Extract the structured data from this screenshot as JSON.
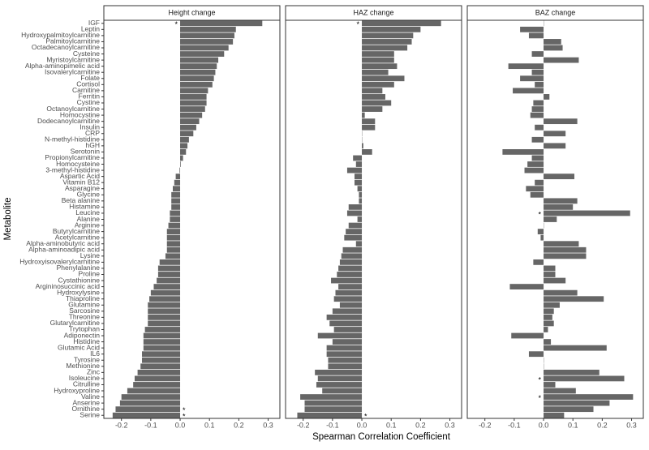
{
  "chart_data": {
    "type": "bar",
    "orientation": "horizontal",
    "x_label": "Spearman Correlation Coefficient",
    "y_label": "Metabolite",
    "color": "#666666",
    "categories": [
      "IGF",
      "Leptin",
      "Hydroxypalmitoylcarnitine",
      "Palmitoylcarnitine",
      "Octadecanoylcarnitine",
      "Cysteine",
      "Myristoylcarnitine",
      "Alpha-aminopimelic acid",
      "Isovalerylcarnitine",
      "Folate",
      "Cortisol",
      "Carnitine",
      "Ferritin",
      "Cystine",
      "Octanoylcarnitine",
      "Homocystine",
      "Dodecanoylcarnitine",
      "Insulin",
      "CRP",
      "N-methyl-histidine",
      "hGH",
      "Serotonin",
      "Propionylcarnitine",
      "Homocysteine",
      "3-methyl-histidine",
      "Aspartic Acid",
      "Vitamin B12",
      "Asparagine",
      "Glycine",
      "Beta alanine",
      "Histamine",
      "Leucine",
      "Alanine",
      "Arginine",
      "Butyrylcarnitine",
      "Acetylcarnitine",
      "Alpha-aminobutyric acid",
      "Alpha-aminoadipic acid",
      "Lysine",
      "Hydroxyisovalerylcarnitine",
      "Phenylalanine",
      "Proline",
      "Cystathionine",
      "Argininosuccinic acid",
      "Hydroxylysine",
      "Thiaproline",
      "Glutamine",
      "Sarcosine",
      "Threonine",
      "Glutarylcarnitine",
      "Trytophan",
      "Adiponectin",
      "Histidine",
      "Glutamic Acid",
      "IL6",
      "Tyrosine",
      "Methionine",
      "Zinc",
      "Isoleucine",
      "Citrulline",
      "Hydroxyproline",
      "Valine",
      "Anserine",
      "Ornithine",
      "Serine"
    ],
    "xlim": [
      -0.26,
      0.34
    ],
    "xticks": [
      -0.2,
      -0.1,
      {
        "value": 0,
        "label": "0.0"
      },
      0.1,
      0.2,
      0.3
    ],
    "series": [
      {
        "name": "Height change",
        "values": [
          0.28,
          0.19,
          0.185,
          0.18,
          0.165,
          0.15,
          0.13,
          0.125,
          0.12,
          0.115,
          0.11,
          0.095,
          0.09,
          0.09,
          0.085,
          0.075,
          0.065,
          0.055,
          0.045,
          0.03,
          0.025,
          0.02,
          0.01,
          0.002,
          -0.002,
          -0.015,
          -0.02,
          -0.025,
          -0.03,
          -0.03,
          -0.03,
          -0.035,
          -0.035,
          -0.04,
          -0.045,
          -0.045,
          -0.045,
          -0.045,
          -0.05,
          -0.07,
          -0.075,
          -0.075,
          -0.08,
          -0.09,
          -0.1,
          -0.105,
          -0.11,
          -0.11,
          -0.11,
          -0.11,
          -0.12,
          -0.125,
          -0.125,
          -0.125,
          -0.13,
          -0.13,
          -0.135,
          -0.145,
          -0.155,
          -0.16,
          -0.18,
          -0.2,
          -0.205,
          -0.22,
          -0.23
        ],
        "annotations": [
          {
            "text": "*",
            "category": "IGF"
          },
          {
            "text": "*",
            "category": "Ornithine"
          },
          {
            "text": "*",
            "category": "Serine"
          }
        ]
      },
      {
        "name": "HAZ change",
        "values": [
          0.27,
          0.2,
          0.175,
          0.17,
          0.155,
          0.11,
          0.11,
          0.12,
          0.09,
          0.145,
          0.11,
          0.07,
          0.08,
          0.1,
          0.07,
          0.01,
          0.045,
          0.045,
          0.001,
          0.001,
          0.005,
          0.035,
          -0.03,
          -0.02,
          -0.05,
          -0.025,
          -0.025,
          -0.015,
          -0.01,
          -0.01,
          -0.045,
          -0.05,
          -0.015,
          -0.045,
          -0.055,
          -0.06,
          -0.02,
          -0.065,
          -0.07,
          -0.075,
          -0.08,
          -0.085,
          -0.105,
          -0.08,
          -0.09,
          -0.095,
          -0.075,
          -0.1,
          -0.12,
          -0.11,
          -0.095,
          -0.15,
          -0.1,
          -0.12,
          -0.12,
          -0.115,
          -0.115,
          -0.16,
          -0.15,
          -0.155,
          -0.135,
          -0.21,
          -0.195,
          -0.195,
          -0.22
        ],
        "annotations": [
          {
            "text": "*",
            "category": "IGF"
          },
          {
            "text": "*",
            "category": "Serine"
          }
        ]
      },
      {
        "name": "BAZ change",
        "values": [
          0.001,
          -0.08,
          -0.05,
          0.06,
          0.065,
          -0.04,
          0.12,
          -0.12,
          -0.04,
          -0.08,
          -0.03,
          -0.105,
          0.02,
          -0.035,
          -0.04,
          -0.045,
          0.115,
          -0.03,
          0.075,
          -0.04,
          0.075,
          -0.14,
          -0.04,
          -0.055,
          -0.065,
          0.105,
          -0.03,
          -0.06,
          -0.045,
          0.115,
          0.1,
          0.295,
          0.045,
          0.001,
          -0.02,
          -0.01,
          0.12,
          0.145,
          0.145,
          -0.035,
          0.04,
          0.04,
          0.075,
          -0.115,
          0.115,
          0.205,
          0.055,
          0.035,
          0.03,
          0.035,
          0.015,
          -0.11,
          0.025,
          0.215,
          -0.05,
          0.001,
          0.001,
          0.19,
          0.275,
          0.04,
          0.11,
          0.305,
          0.225,
          0.17,
          0.07
        ],
        "annotations": [
          {
            "text": "*",
            "category": "Leucine"
          },
          {
            "text": "*",
            "category": "Isoleucine"
          },
          {
            "text": "*",
            "category": "Valine"
          }
        ]
      }
    ]
  }
}
